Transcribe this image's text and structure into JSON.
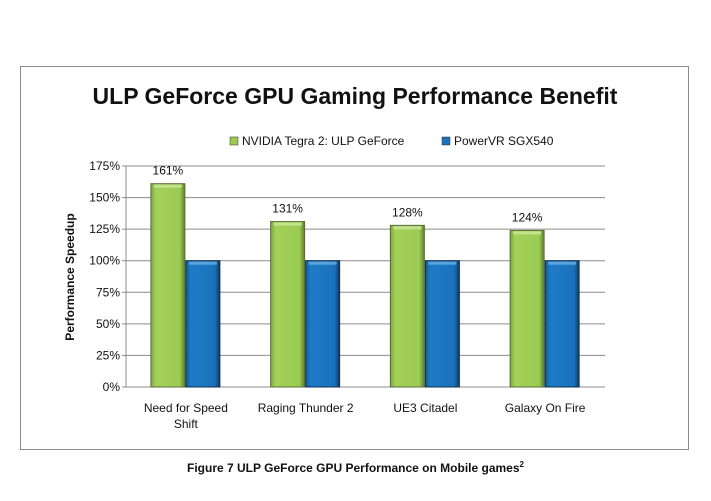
{
  "caption": {
    "text": "Figure 7 ULP GeForce GPU Performance on Mobile games",
    "superscript": "2"
  },
  "chart_data": {
    "type": "bar",
    "title": "ULP GeForce GPU Gaming Performance Benefit",
    "ylabel": "Performance Speedup",
    "xlabel": "",
    "ylim": [
      0,
      175
    ],
    "yticks": [
      "0%",
      "25%",
      "50%",
      "75%",
      "100%",
      "125%",
      "150%",
      "175%"
    ],
    "categories": [
      [
        "Need for Speed",
        "Shift"
      ],
      [
        "Raging Thunder 2"
      ],
      [
        "UE3 Citadel"
      ],
      [
        "Galaxy On Fire"
      ]
    ],
    "series": [
      {
        "name": "NVIDIA Tegra 2: ULP GeForce",
        "values": [
          161,
          131,
          128,
          124
        ],
        "labels": [
          "161%",
          "131%",
          "128%",
          "124%"
        ],
        "color": "#9bcb52"
      },
      {
        "name": "PowerVR SGX540",
        "values": [
          100,
          100,
          100,
          100
        ],
        "color": "#1a72bb"
      }
    ],
    "grid": true,
    "legend": "top"
  }
}
